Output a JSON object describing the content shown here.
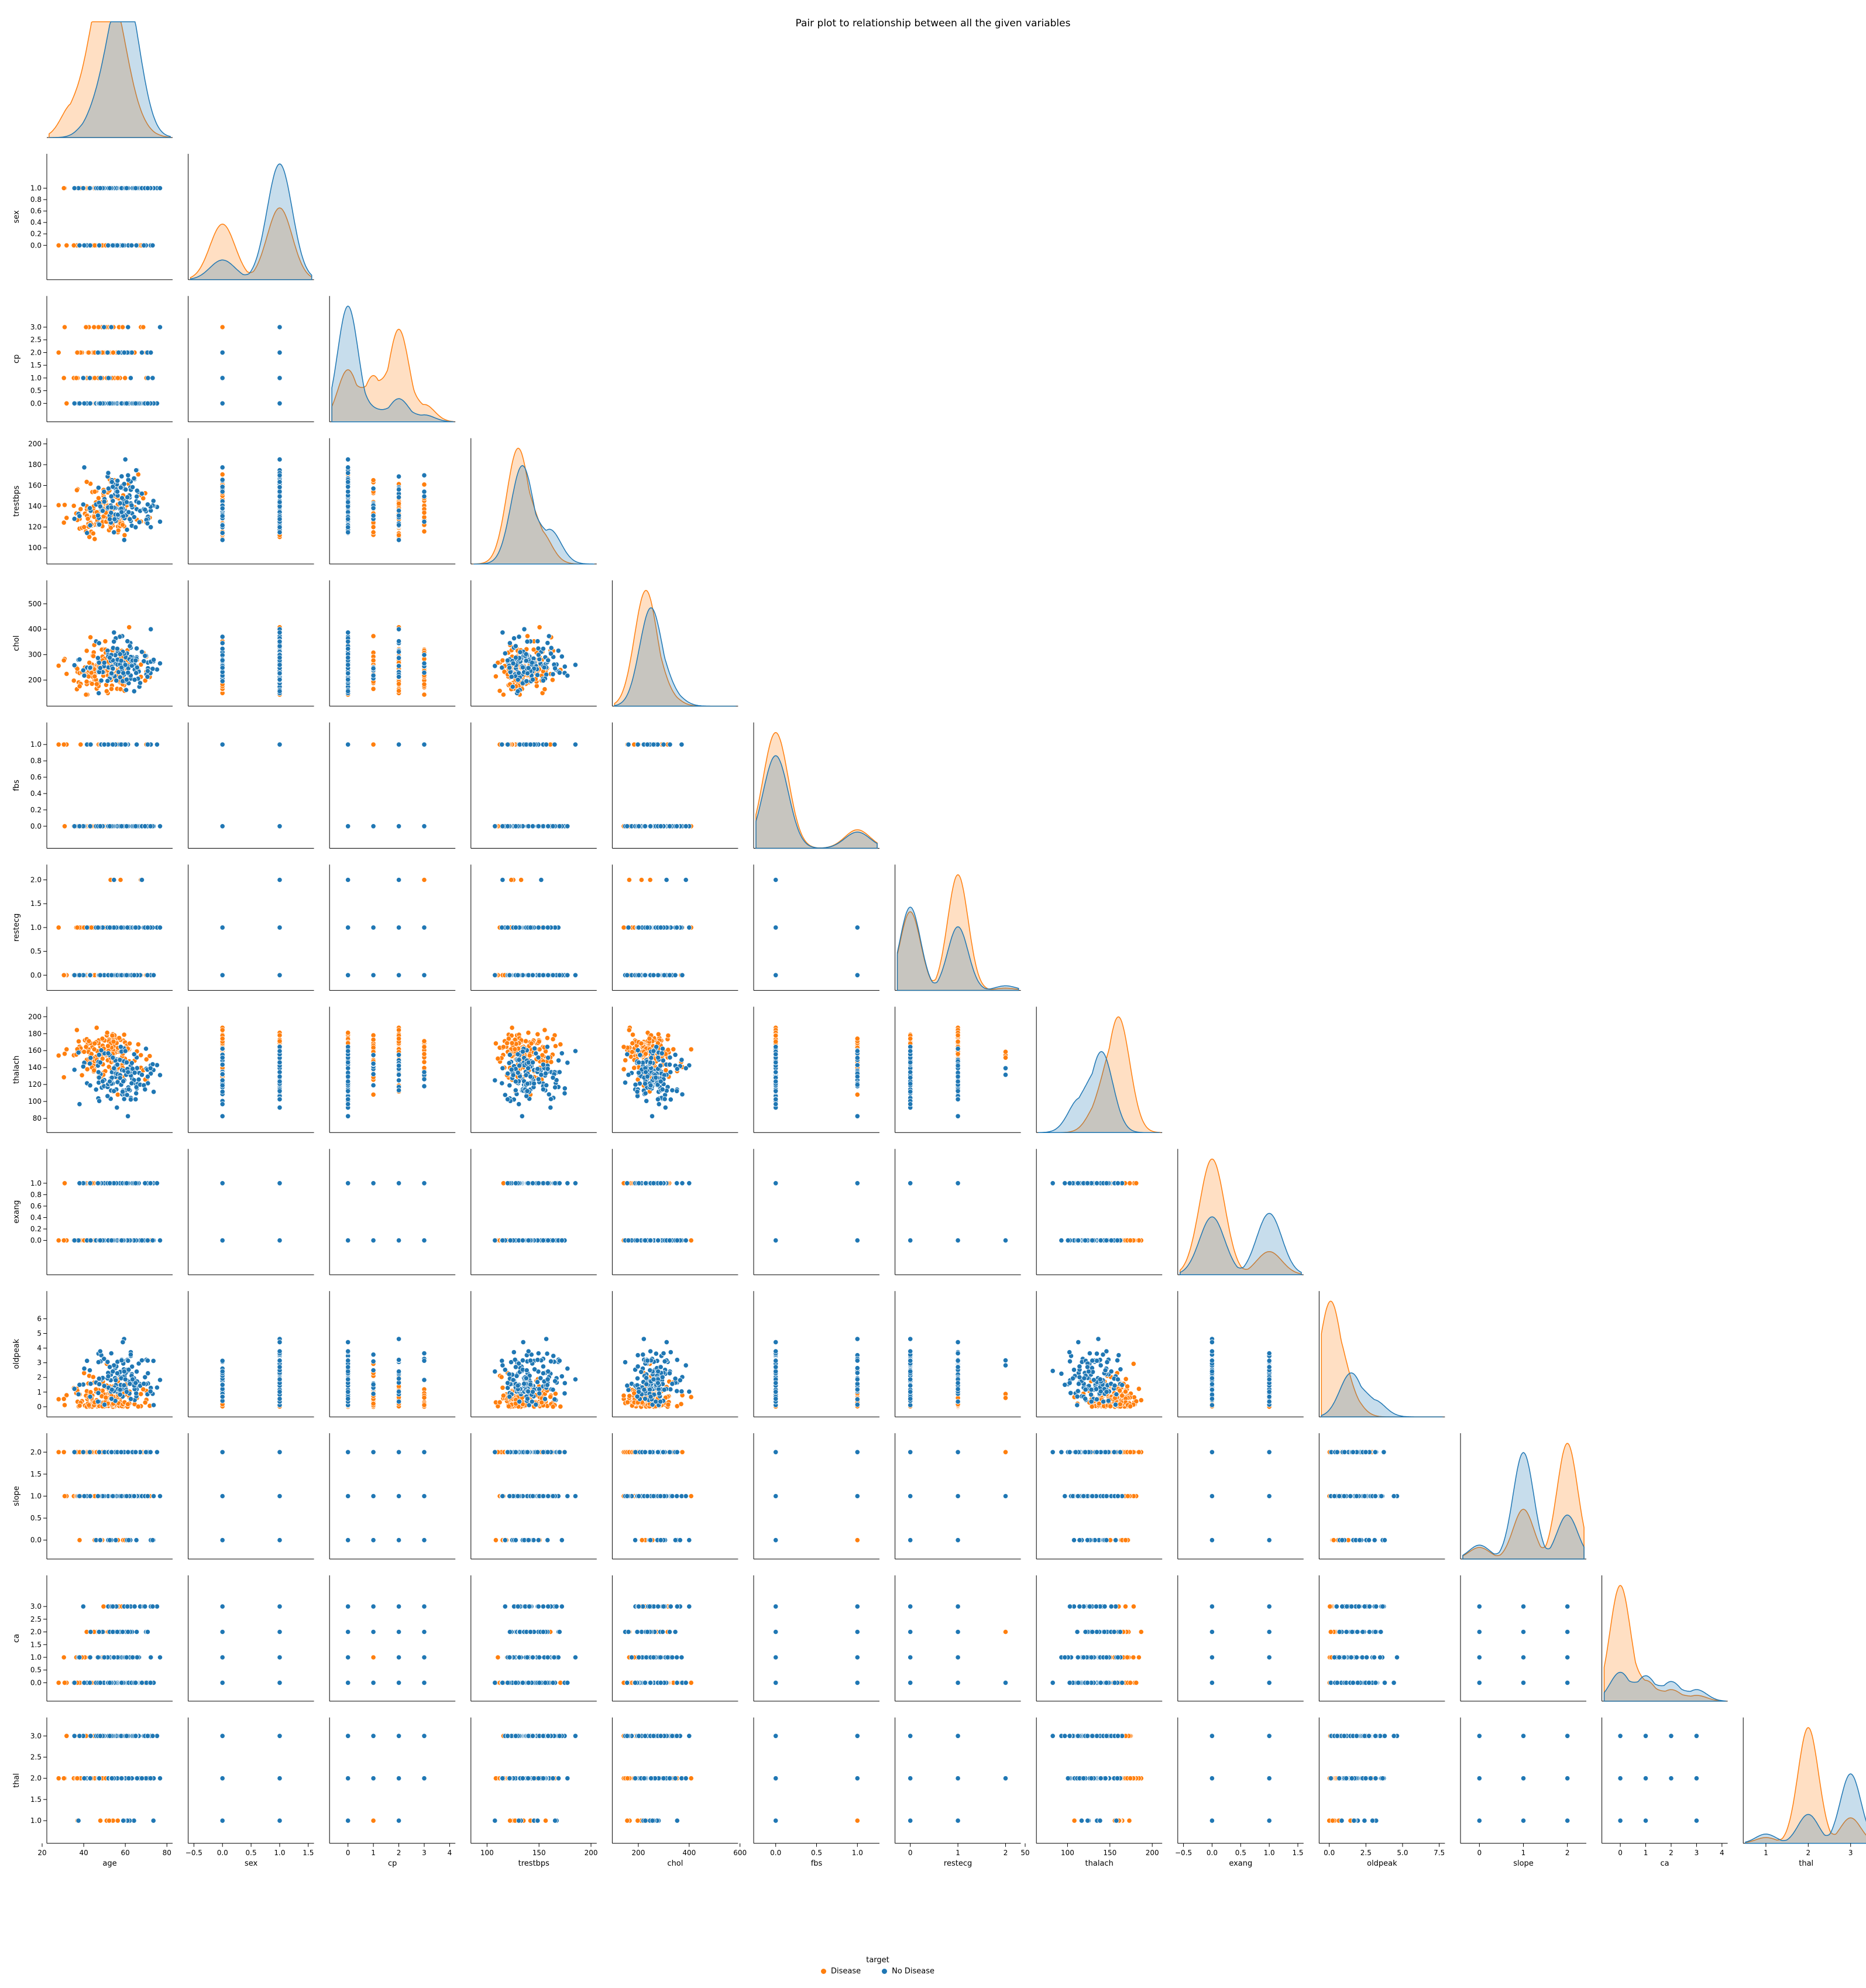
{
  "chart_data": {
    "type": "pairplot",
    "title": "Pair plot to relationship between all the given variables",
    "corner": true,
    "hue": "target",
    "legend": {
      "title": "target",
      "placement": "bottom-center",
      "entries": [
        "Disease",
        "No Disease"
      ]
    },
    "series": [
      {
        "name": "Disease",
        "color": "#ff7f0e"
      },
      {
        "name": "No Disease",
        "color": "#1f77b4"
      }
    ],
    "variables": [
      {
        "name": "age",
        "range": [
          25,
          80
        ],
        "ticks": [
          20,
          40,
          60,
          80
        ],
        "kind": "continuous",
        "kde": {
          "Disease": [
            [
              35,
              0.3
            ],
            [
              45,
              0.75
            ],
            [
              50,
              0.8
            ],
            [
              55,
              0.7
            ],
            [
              60,
              0.4
            ],
            [
              67,
              0.1
            ]
          ],
          "No Disease": [
            [
              45,
              0.2
            ],
            [
              52,
              0.5
            ],
            [
              58,
              1.0
            ],
            [
              63,
              0.7
            ],
            [
              68,
              0.2
            ]
          ]
        }
      },
      {
        "name": "sex",
        "range": [
          -0.5,
          1.5
        ],
        "ticks": [
          -0.5,
          0.0,
          0.5,
          1.0,
          1.5
        ],
        "ticklabels": [
          "−0.5",
          "0.0",
          "0.5",
          "1.0",
          "1.5"
        ],
        "ylim": [
          0,
          1
        ],
        "yticks": [
          0.0,
          0.2,
          0.4,
          0.6,
          0.8,
          1.0
        ],
        "kind": "discrete",
        "values": [
          0,
          1
        ],
        "props": {
          "Disease": [
            0.44,
            0.56
          ],
          "No Disease": [
            0.17,
            0.83
          ]
        },
        "kde": {
          "Disease": [
            [
              0,
              0.48
            ],
            [
              1,
              0.62
            ]
          ],
          "No Disease": [
            [
              0,
              0.17
            ],
            [
              1,
              1.0
            ]
          ]
        }
      },
      {
        "name": "cp",
        "range": [
          -0.5,
          4
        ],
        "ticks": [
          0,
          1,
          2,
          3,
          4
        ],
        "yticks": [
          0.0,
          0.5,
          1.0,
          1.5,
          2.0,
          2.5,
          3.0
        ],
        "kind": "discrete",
        "values": [
          0,
          1,
          2,
          3
        ],
        "props": {
          "Disease": [
            0.24,
            0.25,
            0.42,
            0.09
          ],
          "No Disease": [
            0.75,
            0.07,
            0.13,
            0.05
          ]
        },
        "kde": {
          "Disease": [
            [
              0,
              0.45
            ],
            [
              1,
              0.4
            ],
            [
              2,
              0.8
            ],
            [
              3,
              0.15
            ]
          ],
          "No Disease": [
            [
              0,
              1.0
            ],
            [
              1,
              0.12
            ],
            [
              2,
              0.2
            ],
            [
              3,
              0.06
            ]
          ]
        }
      },
      {
        "name": "trestbps",
        "range": [
          90,
          200
        ],
        "ticks": [
          100,
          150,
          200
        ],
        "yticks": [
          100,
          120,
          140,
          160,
          180,
          200
        ],
        "kind": "continuous",
        "kde": {
          "Disease": [
            [
              130,
              1.0
            ],
            [
              150,
              0.3
            ]
          ],
          "No Disease": [
            [
              134,
              0.85
            ],
            [
              160,
              0.3
            ]
          ]
        }
      },
      {
        "name": "chol",
        "range": [
          120,
          570
        ],
        "ticks": [
          200,
          400,
          600
        ],
        "yticks": [
          200,
          300,
          400,
          500
        ],
        "kind": "continuous",
        "kde": {
          "Disease": [
            [
              230,
              1.0
            ],
            [
              300,
              0.15
            ]
          ],
          "No Disease": [
            [
              250,
              0.85
            ],
            [
              320,
              0.15
            ]
          ]
        }
      },
      {
        "name": "fbs",
        "range": [
          -0.2,
          1.2
        ],
        "ticks": [
          0.0,
          0.5,
          1.0
        ],
        "yticks": [
          0.0,
          0.2,
          0.4,
          0.6,
          0.8,
          1.0
        ],
        "kind": "discrete",
        "values": [
          0,
          1
        ],
        "props": {
          "Disease": [
            0.86,
            0.14
          ],
          "No Disease": [
            0.84,
            0.16
          ]
        },
        "kde": {
          "Disease": [
            [
              0,
              1.0
            ],
            [
              1,
              0.16
            ]
          ],
          "No Disease": [
            [
              0,
              0.8
            ],
            [
              1,
              0.14
            ]
          ]
        }
      },
      {
        "name": "restecg",
        "range": [
          -0.2,
          2.2
        ],
        "ticks": [
          0,
          1,
          2
        ],
        "yticks": [
          0.0,
          0.5,
          1.0,
          1.5,
          2.0
        ],
        "kind": "discrete",
        "values": [
          0,
          1,
          2
        ],
        "props": {
          "Disease": [
            0.41,
            0.58,
            0.01
          ],
          "No Disease": [
            0.57,
            0.4,
            0.03
          ]
        },
        "kde": {
          "Disease": [
            [
              0,
              0.68
            ],
            [
              1,
              1.0
            ],
            [
              2,
              0.02
            ]
          ],
          "No Disease": [
            [
              0,
              0.72
            ],
            [
              1,
              0.55
            ],
            [
              2,
              0.04
            ]
          ]
        }
      },
      {
        "name": "thalach",
        "range": [
          70,
          205
        ],
        "ticks": [
          50,
          100,
          150,
          200
        ],
        "yticks": [
          80,
          100,
          120,
          140,
          160,
          180,
          200
        ],
        "kind": "continuous",
        "kde": {
          "Disease": [
            [
              160,
              1.0
            ],
            [
              140,
              0.3
            ]
          ],
          "No Disease": [
            [
              140,
              0.7
            ],
            [
              115,
              0.3
            ]
          ]
        }
      },
      {
        "name": "exang",
        "range": [
          -0.5,
          1.5
        ],
        "ticks": [
          -0.5,
          0.0,
          0.5,
          1.0,
          1.5
        ],
        "ticklabels": [
          "−0.5",
          "0.0",
          "0.5",
          "1.0",
          "1.5"
        ],
        "yticks": [
          0.0,
          0.2,
          0.4,
          0.6,
          0.8,
          1.0
        ],
        "kind": "discrete",
        "values": [
          0,
          1
        ],
        "props": {
          "Disease": [
            0.86,
            0.14
          ],
          "No Disease": [
            0.45,
            0.55
          ]
        },
        "kde": {
          "Disease": [
            [
              0,
              1.0
            ],
            [
              1,
              0.2
            ]
          ],
          "No Disease": [
            [
              0,
              0.5
            ],
            [
              1,
              0.53
            ]
          ]
        }
      },
      {
        "name": "oldpeak",
        "range": [
          -0.3,
          7.5
        ],
        "ticks": [
          0.0,
          2.5,
          5.0,
          7.5
        ],
        "yticks": [
          0,
          1,
          2,
          3,
          4,
          5,
          6
        ],
        "kind": "continuous",
        "kde": {
          "Disease": [
            [
              0.1,
              1.0
            ],
            [
              1.2,
              0.25
            ]
          ],
          "No Disease": [
            [
              1.5,
              0.38
            ],
            [
              3,
              0.15
            ]
          ]
        }
      },
      {
        "name": "slope",
        "range": [
          -0.3,
          2.3
        ],
        "ticks": [
          0,
          1,
          2
        ],
        "yticks": [
          0.0,
          0.5,
          1.0,
          1.5,
          2.0
        ],
        "kind": "discrete",
        "values": [
          0,
          1,
          2
        ],
        "props": {
          "Disease": [
            0.05,
            0.3,
            0.65
          ],
          "No Disease": [
            0.09,
            0.65,
            0.26
          ]
        },
        "kde": {
          "Disease": [
            [
              0,
              0.1
            ],
            [
              1,
              0.43
            ],
            [
              2,
              1.0
            ]
          ],
          "No Disease": [
            [
              0,
              0.12
            ],
            [
              1,
              0.92
            ],
            [
              2,
              0.38
            ]
          ]
        }
      },
      {
        "name": "ca",
        "range": [
          -0.5,
          4
        ],
        "ticks": [
          0,
          1,
          2,
          3,
          4
        ],
        "yticks": [
          0.0,
          0.5,
          1.0,
          1.5,
          2.0,
          2.5,
          3.0
        ],
        "kind": "discrete",
        "values": [
          0,
          1,
          2,
          3
        ],
        "props": {
          "Disease": [
            0.78,
            0.13,
            0.05,
            0.04
          ],
          "No Disease": [
            0.32,
            0.32,
            0.22,
            0.14
          ]
        },
        "kde": {
          "Disease": [
            [
              0,
              1.0
            ],
            [
              1,
              0.18
            ],
            [
              2,
              0.1
            ],
            [
              3,
              0.05
            ]
          ],
          "No Disease": [
            [
              0,
              0.25
            ],
            [
              1,
              0.22
            ],
            [
              2,
              0.17
            ],
            [
              3,
              0.1
            ]
          ]
        }
      },
      {
        "name": "thal",
        "range": [
          0.6,
          3.3
        ],
        "ticks": [
          1,
          2,
          3
        ],
        "yticks": [
          1.0,
          1.5,
          2.0,
          2.5,
          3.0
        ],
        "kind": "discrete",
        "values": [
          1,
          2,
          3
        ],
        "props": {
          "Disease": [
            0.04,
            0.79,
            0.17
          ],
          "No Disease": [
            0.08,
            0.27,
            0.65
          ]
        },
        "kde": {
          "Disease": [
            [
              1,
              0.05
            ],
            [
              2,
              1.0
            ],
            [
              3,
              0.22
            ]
          ],
          "No Disease": [
            [
              1,
              0.08
            ],
            [
              2,
              0.25
            ],
            [
              3,
              0.6
            ]
          ]
        }
      }
    ]
  }
}
